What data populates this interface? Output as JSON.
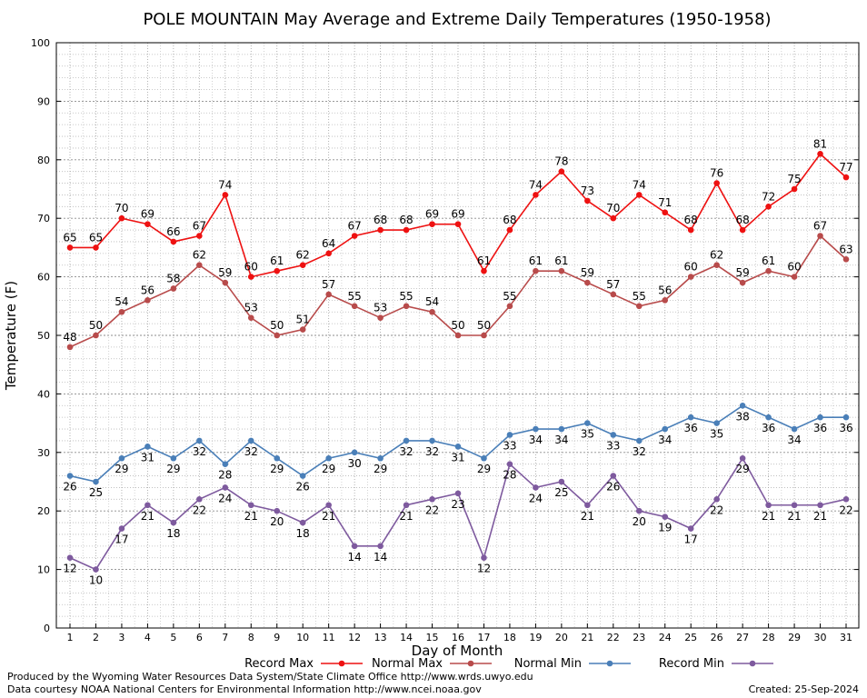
{
  "chart_data": {
    "type": "line",
    "title": "POLE MOUNTAIN May Average and Extreme Daily Temperatures (1950-1958)",
    "xlabel": "Day of Month",
    "ylabel": "Temperature (F)",
    "ylim": [
      0,
      100
    ],
    "yticks": [
      0,
      10,
      20,
      30,
      40,
      50,
      60,
      70,
      80,
      90,
      100
    ],
    "x": [
      1,
      2,
      3,
      4,
      5,
      6,
      7,
      8,
      9,
      10,
      11,
      12,
      13,
      14,
      15,
      16,
      17,
      18,
      19,
      20,
      21,
      22,
      23,
      24,
      25,
      26,
      27,
      28,
      29,
      30,
      31
    ],
    "grid": true,
    "legend_position": "bottom",
    "series": [
      {
        "name": "Record Max",
        "color": "#ee1111",
        "label_position": "above",
        "values": [
          65,
          65,
          70,
          69,
          66,
          67,
          74,
          60,
          61,
          62,
          64,
          67,
          68,
          68,
          69,
          69,
          61,
          68,
          74,
          78,
          73,
          70,
          74,
          71,
          68,
          76,
          68,
          72,
          75,
          81,
          77
        ]
      },
      {
        "name": "Normal Max",
        "color": "#b84b4b",
        "label_position": "above",
        "values": [
          48,
          50,
          54,
          56,
          58,
          62,
          59,
          53,
          50,
          51,
          57,
          55,
          53,
          55,
          54,
          50,
          50,
          55,
          61,
          61,
          59,
          57,
          55,
          56,
          60,
          62,
          59,
          61,
          60,
          67,
          63
        ]
      },
      {
        "name": "Normal Min",
        "color": "#4a7fb8",
        "label_position": "below",
        "values": [
          26,
          25,
          29,
          31,
          29,
          32,
          28,
          32,
          29,
          26,
          29,
          30,
          29,
          32,
          32,
          31,
          29,
          33,
          34,
          34,
          35,
          33,
          32,
          34,
          36,
          35,
          38,
          36,
          34,
          36,
          36
        ]
      },
      {
        "name": "Record Min",
        "color": "#7e5a9e",
        "label_position": "below",
        "values": [
          12,
          10,
          17,
          21,
          18,
          22,
          24,
          21,
          20,
          18,
          21,
          14,
          14,
          21,
          22,
          23,
          12,
          28,
          24,
          25,
          21,
          26,
          20,
          19,
          17,
          22,
          29,
          21,
          21,
          21,
          22
        ]
      }
    ]
  },
  "footer": {
    "credit_line1": "Produced by the Wyoming Water Resources Data System/State Climate Office http://www.wrds.uwyo.edu",
    "credit_line2": "Data courtesy NOAA National Centers for Environmental Information http://www.ncei.noaa.gov",
    "created": "Created:  25-Sep-2024"
  }
}
